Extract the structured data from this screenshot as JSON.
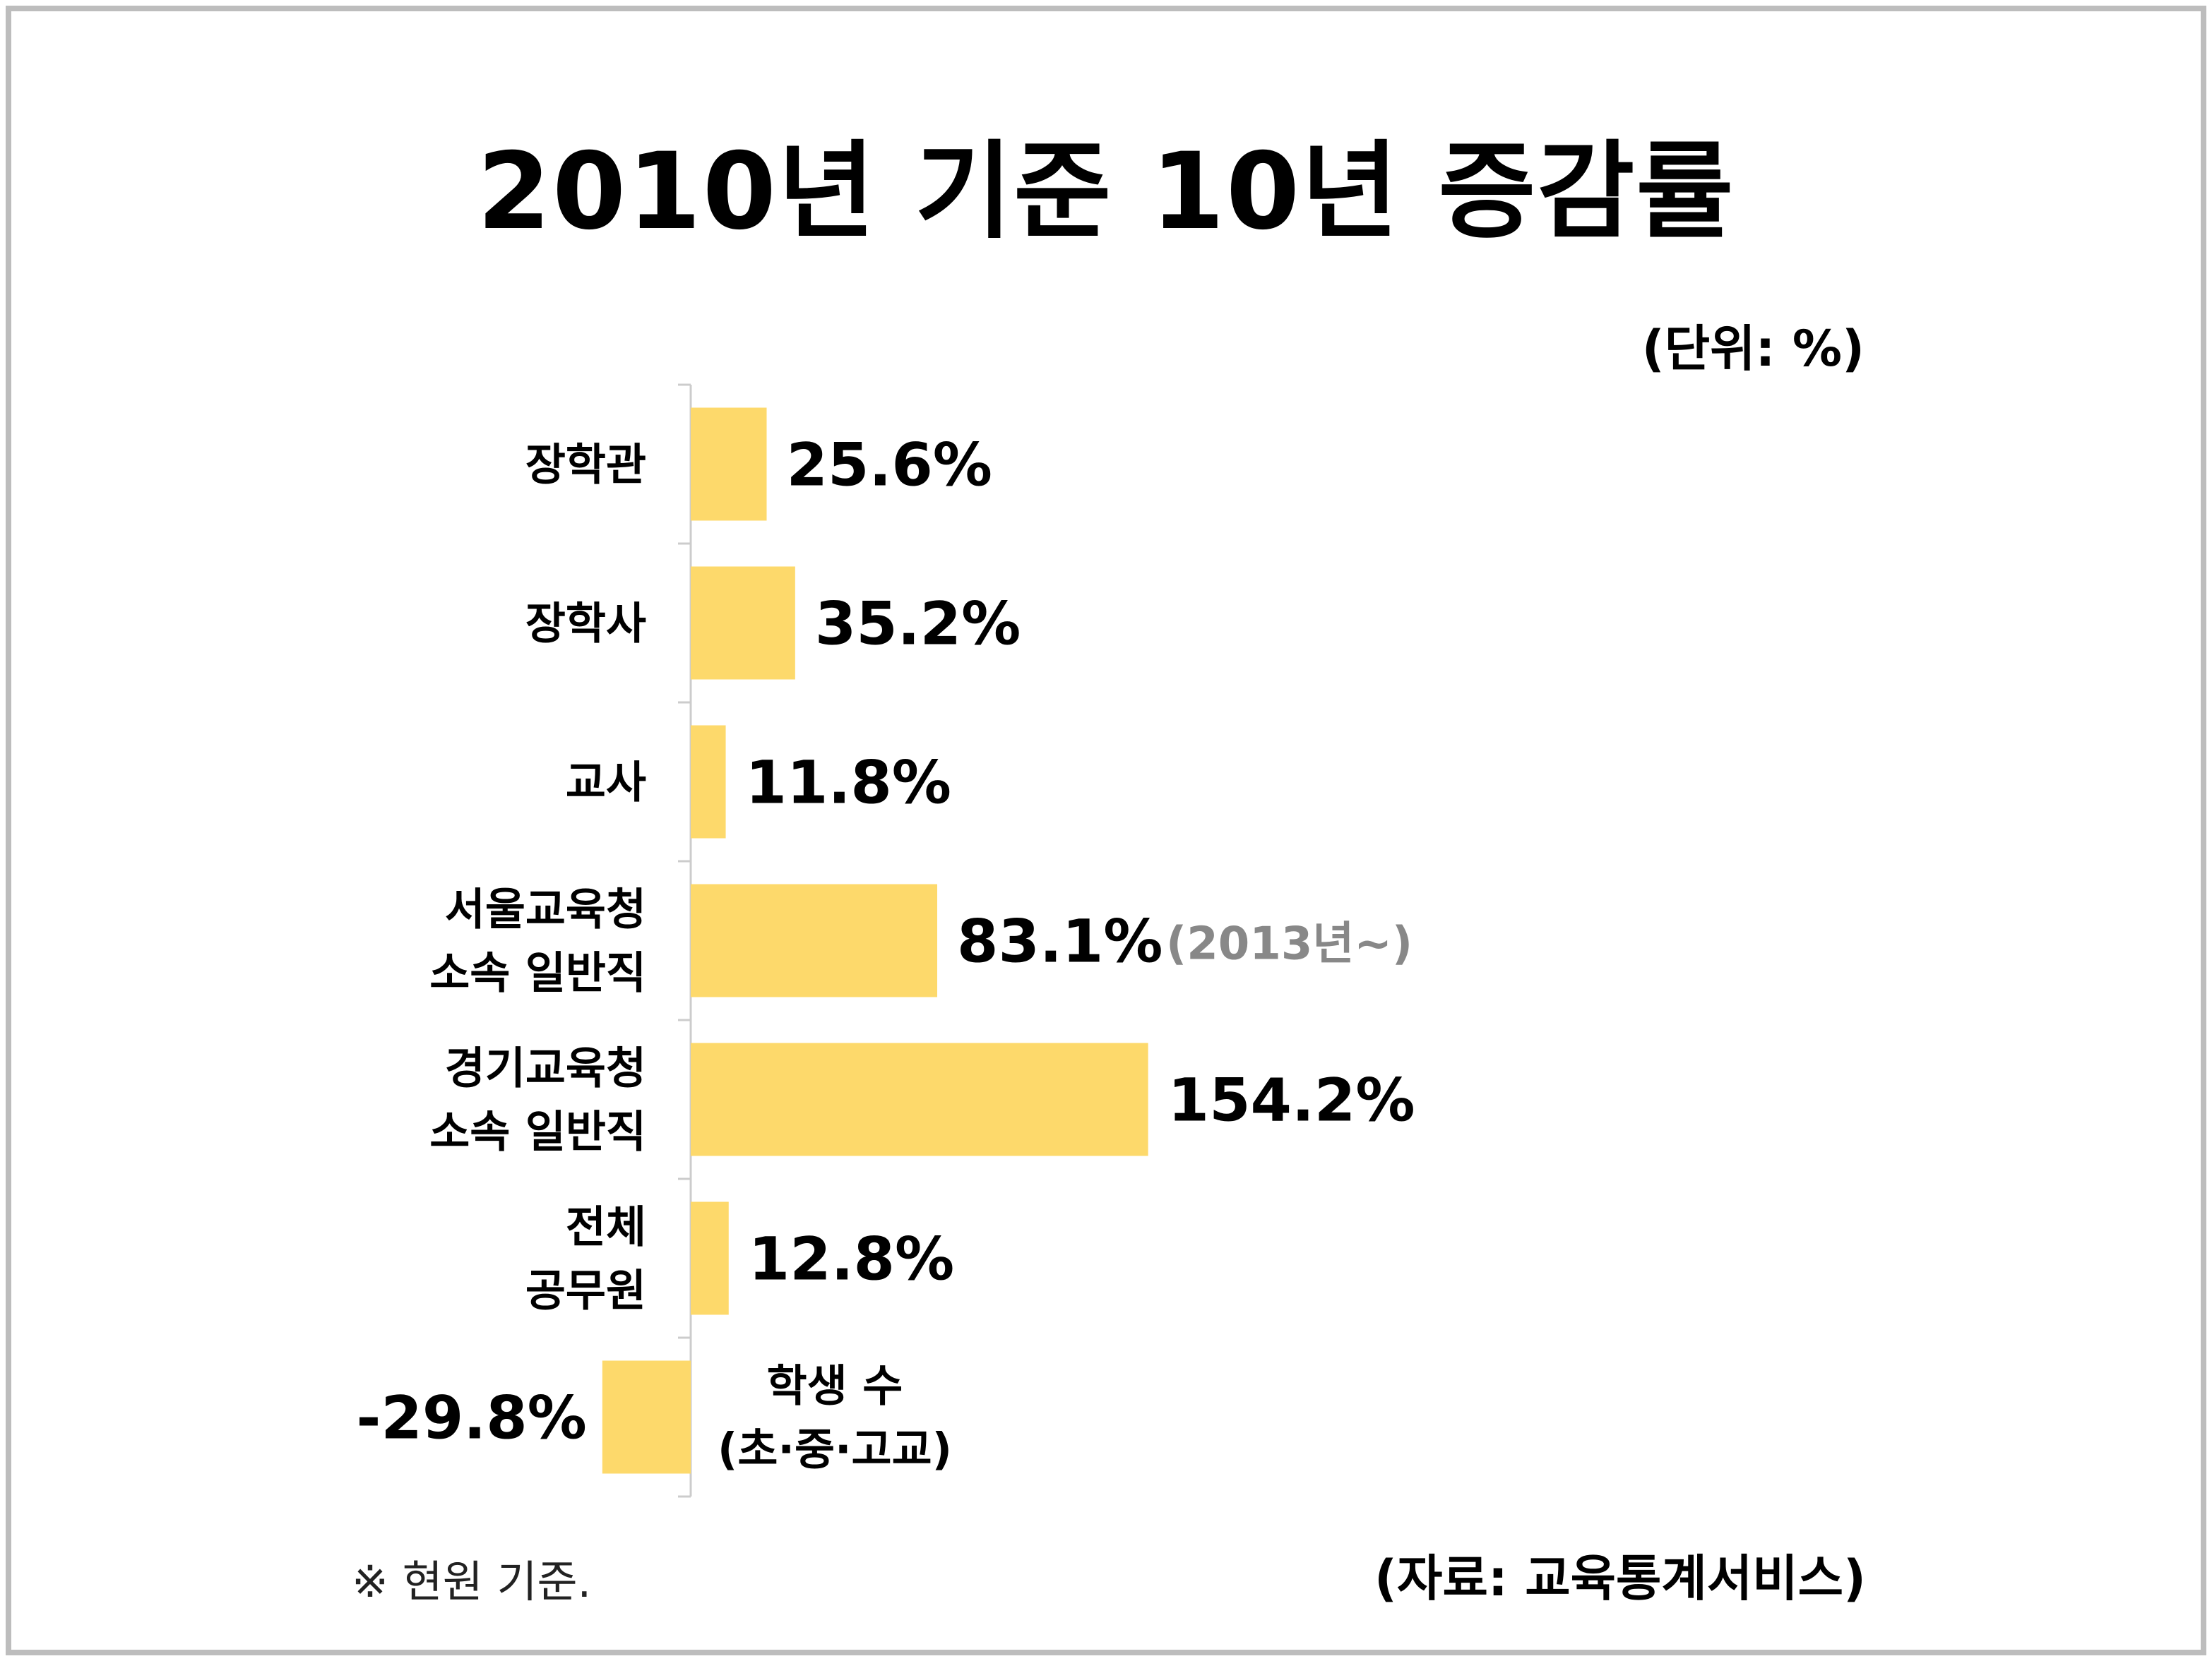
{
  "title": "2010년 기준 10년 증감률",
  "unit_label": "(단위: %)",
  "note": "※ 현원 기준.",
  "source": "(자료: 교육통계서비스)",
  "colors": {
    "bar": "#FDD96B",
    "axis": "#cccccc",
    "text": "#000000",
    "subtext": "#888888"
  },
  "chart_data": {
    "type": "bar",
    "orientation": "horizontal",
    "categories": [
      [
        "장학관"
      ],
      [
        "장학사"
      ],
      [
        "교사"
      ],
      [
        "서울교육청",
        "소속 일반직"
      ],
      [
        "경기교육청",
        "소속 일반직"
      ],
      [
        "전체",
        "공무원"
      ],
      [
        "학생 수",
        "(초·중·고교)"
      ]
    ],
    "values": [
      25.6,
      35.2,
      11.8,
      83.1,
      154.2,
      12.8,
      -29.8
    ],
    "value_labels": [
      "25.6%",
      "35.2%",
      "11.8%",
      "83.1%",
      "154.2%",
      "12.8%",
      "-29.8%"
    ],
    "annotations": [
      "",
      "",
      "",
      "(2013년~)",
      "",
      "",
      ""
    ]
  }
}
